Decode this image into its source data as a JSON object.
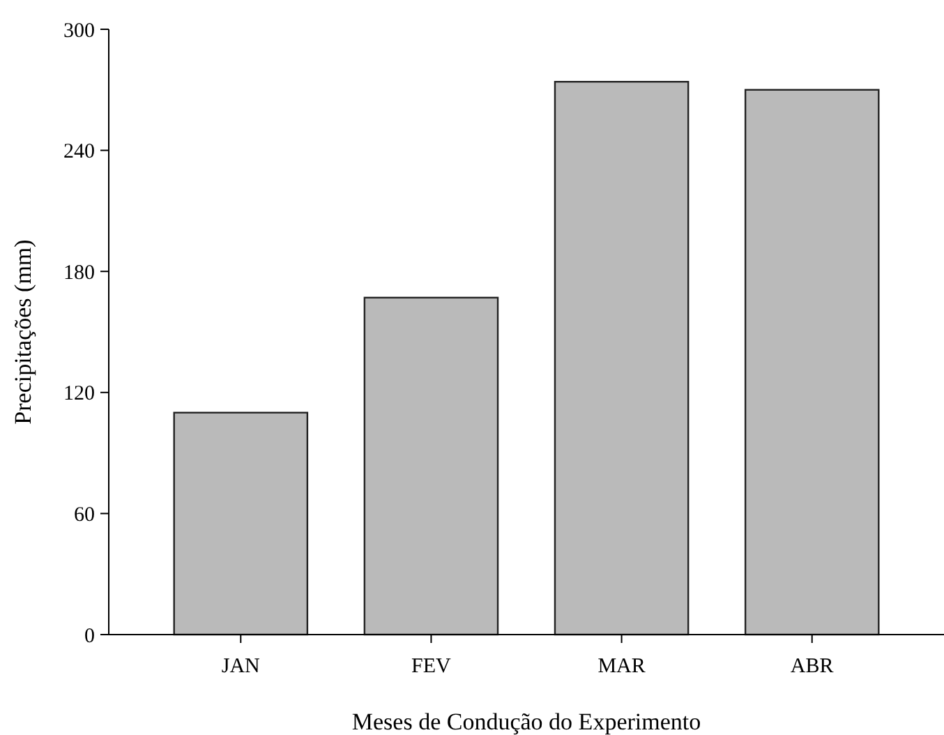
{
  "chart_data": {
    "type": "bar",
    "xlabel": "Meses de Condução do Experimento",
    "ylabel": "Precipitações (mm)",
    "categories": [
      "JAN",
      "FEV",
      "MAR",
      "ABR"
    ],
    "values": [
      110,
      167,
      274,
      270
    ],
    "color": "#bababa",
    "ylim": [
      0,
      300
    ],
    "yticks": [
      0,
      60,
      120,
      180,
      240,
      300
    ]
  }
}
